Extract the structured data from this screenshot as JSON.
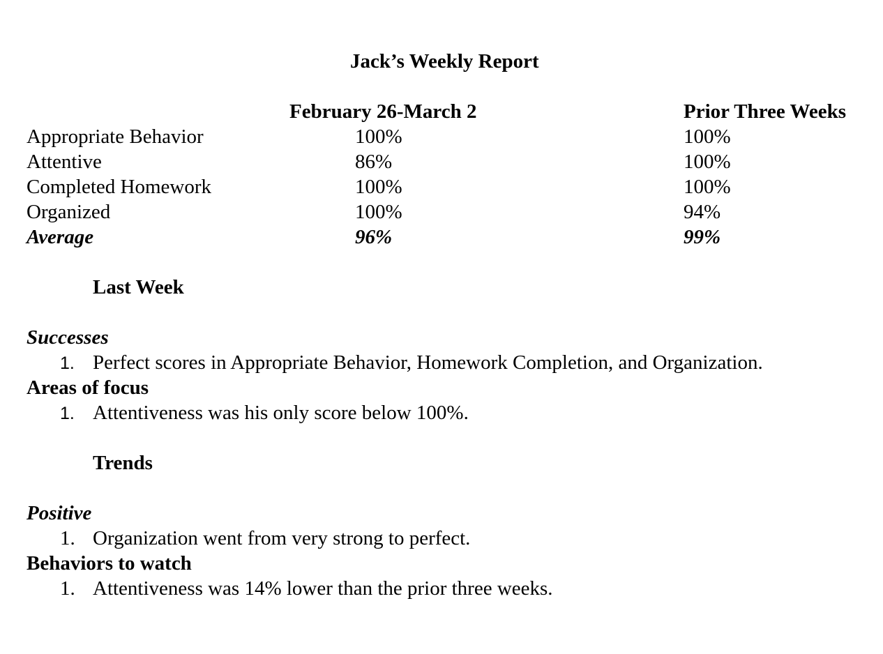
{
  "report": {
    "title": "Jack’s Weekly Report",
    "col_current": "February 26-March 2",
    "col_prior": "Prior Three Weeks",
    "rows": [
      {
        "label": "Appropriate Behavior",
        "current": "100%",
        "prior": "100%"
      },
      {
        "label": "Attentive",
        "current": "86%",
        "prior": "100%"
      },
      {
        "label": "Completed Homework",
        "current": "100%",
        "prior": "100%"
      },
      {
        "label": "Organized",
        "current": "100%",
        "prior": "94%"
      }
    ],
    "average": {
      "label": "Average",
      "current": "96%",
      "prior": "99%"
    }
  },
  "last_week": {
    "heading": "Last Week",
    "successes_label": "Successes",
    "successes_items": [
      {
        "num": "1.",
        "text": "Perfect scores in Appropriate Behavior, Homework Completion, and Organization."
      }
    ],
    "focus_label": "Areas of focus",
    "focus_items": [
      {
        "num": "1.",
        "text": "Attentiveness was his only score below 100%."
      }
    ]
  },
  "trends": {
    "heading": "Trends",
    "positive_label": "Positive",
    "positive_items": [
      {
        "num": "1.",
        "text": "Organization went from very strong to perfect."
      }
    ],
    "watch_label": "Behaviors to watch",
    "watch_items": [
      {
        "num": "1.",
        "text": "Attentiveness was 14% lower than the prior three weeks."
      }
    ]
  }
}
